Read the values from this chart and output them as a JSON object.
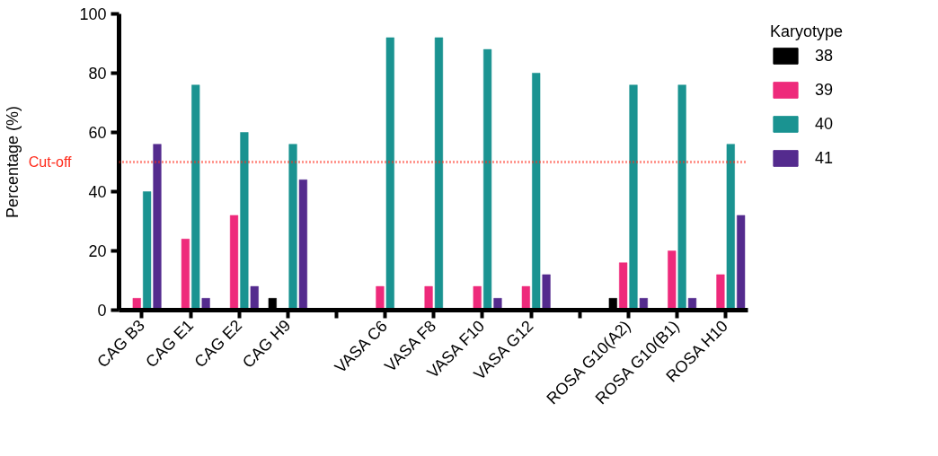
{
  "chart_data": {
    "type": "bar",
    "ylabel": "Percentage (%)",
    "legend_title": "Karyotype",
    "legend": "right",
    "grid": false,
    "categories": [
      "CAG B3",
      "CAG E1",
      "CAG E2",
      "CAG H9",
      null,
      "VASA C6",
      "VASA F8",
      "VASA F10",
      "VASA G12",
      null,
      "ROSA G10(A2)",
      "ROSA G10(B1)",
      "ROSA H10"
    ],
    "ylim": [
      0,
      100
    ],
    "yticks": [
      0,
      20,
      40,
      60,
      80,
      100
    ],
    "series": [
      {
        "name": "38",
        "color": "#000000",
        "values": [
          0,
          0,
          0,
          4,
          null,
          0,
          0,
          0,
          0,
          null,
          4,
          0,
          0
        ]
      },
      {
        "name": "39",
        "color": "#ee2a7b",
        "values": [
          4,
          24,
          32,
          0,
          null,
          8,
          8,
          8,
          8,
          null,
          16,
          20,
          12
        ]
      },
      {
        "name": "40",
        "color": "#1a9391",
        "values": [
          40,
          76,
          60,
          56,
          null,
          92,
          92,
          88,
          80,
          null,
          76,
          76,
          56
        ]
      },
      {
        "name": "41",
        "color": "#542b8e",
        "values": [
          56,
          4,
          8,
          44,
          null,
          0,
          0,
          4,
          12,
          null,
          4,
          4,
          32
        ]
      }
    ],
    "ref_lines": [
      {
        "axis": "y",
        "value": 50,
        "label": "Cut-off",
        "color": "#ff2a1a",
        "line_style": "dotted"
      }
    ]
  }
}
